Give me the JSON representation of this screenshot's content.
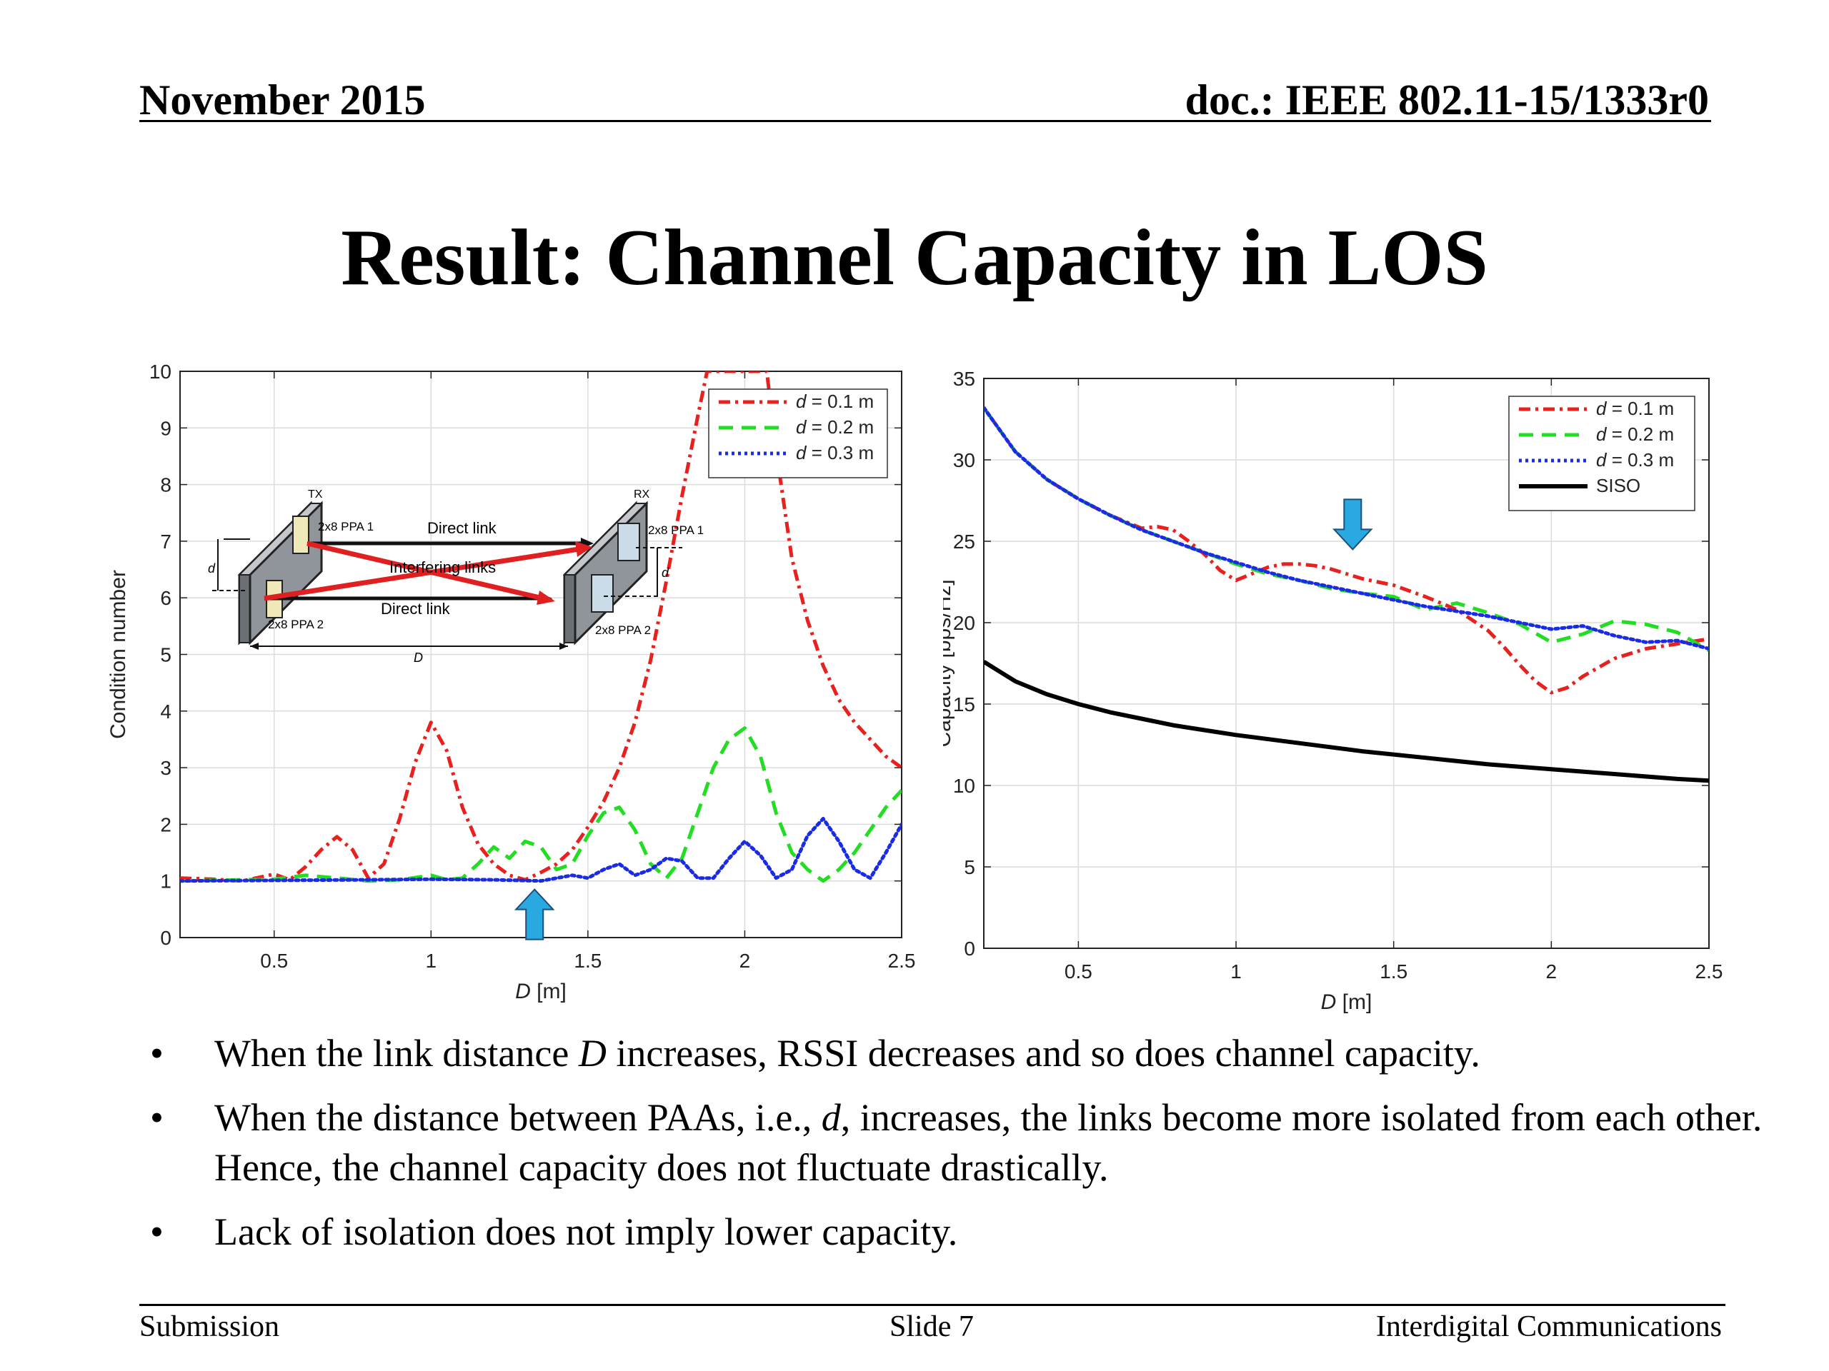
{
  "header": {
    "date": "November 2015",
    "doc_id": "doc.: IEEE 802.11-15/1333r0"
  },
  "title": "Result: Channel Capacity in LOS",
  "chart_data": [
    {
      "type": "line",
      "xlabel": "D [m]",
      "ylabel": "Condition number",
      "xlim": [
        0.2,
        2.5
      ],
      "ylim": [
        0,
        10
      ],
      "xticks": [
        0.5,
        1,
        1.5,
        2,
        2.5
      ],
      "yticks": [
        0,
        1,
        2,
        3,
        4,
        5,
        6,
        7,
        8,
        9,
        10
      ],
      "grid": true,
      "legend_position": "top-right",
      "series": [
        {
          "name": "d = 0.1 m",
          "color": "#e8201e",
          "style": "dash-dot",
          "x": [
            0.2,
            0.3,
            0.4,
            0.5,
            0.55,
            0.6,
            0.65,
            0.7,
            0.75,
            0.8,
            0.85,
            0.9,
            0.95,
            1.0,
            1.05,
            1.1,
            1.15,
            1.2,
            1.25,
            1.3,
            1.35,
            1.4,
            1.45,
            1.5,
            1.55,
            1.6,
            1.65,
            1.7,
            1.75,
            1.8,
            1.85,
            1.88,
            1.91,
            1.94,
            2.07,
            2.1,
            2.15,
            2.2,
            2.25,
            2.3,
            2.35,
            2.4,
            2.45,
            2.5
          ],
          "y": [
            1.05,
            1.03,
            1.0,
            1.12,
            1.02,
            1.25,
            1.55,
            1.78,
            1.55,
            1.05,
            1.3,
            2.1,
            3.1,
            3.8,
            3.3,
            2.3,
            1.65,
            1.3,
            1.1,
            1.02,
            1.15,
            1.3,
            1.55,
            1.95,
            2.4,
            3.0,
            3.8,
            4.9,
            6.3,
            7.8,
            9.2,
            10.0,
            10.0,
            10.0,
            10.0,
            8.6,
            6.7,
            5.6,
            4.8,
            4.2,
            3.8,
            3.5,
            3.2,
            3.0
          ]
        },
        {
          "name": "d = 0.2 m",
          "color": "#22dd22",
          "style": "dashed",
          "x": [
            0.2,
            0.5,
            0.6,
            0.7,
            0.8,
            0.9,
            1.0,
            1.05,
            1.1,
            1.15,
            1.2,
            1.25,
            1.3,
            1.35,
            1.4,
            1.45,
            1.5,
            1.55,
            1.6,
            1.65,
            1.7,
            1.75,
            1.8,
            1.85,
            1.9,
            1.95,
            2.0,
            2.05,
            2.1,
            2.15,
            2.2,
            2.25,
            2.3,
            2.35,
            2.4,
            2.45,
            2.5
          ],
          "y": [
            1.0,
            1.03,
            1.1,
            1.05,
            1.0,
            1.02,
            1.1,
            1.02,
            1.05,
            1.3,
            1.6,
            1.4,
            1.7,
            1.6,
            1.2,
            1.3,
            1.8,
            2.2,
            2.3,
            1.9,
            1.3,
            1.05,
            1.4,
            2.2,
            3.0,
            3.5,
            3.7,
            3.2,
            2.2,
            1.5,
            1.2,
            1.0,
            1.2,
            1.5,
            1.9,
            2.3,
            2.6
          ]
        },
        {
          "name": "d = 0.3 m",
          "color": "#1a2be6",
          "style": "dotted",
          "x": [
            0.2,
            0.5,
            0.8,
            1.0,
            1.2,
            1.35,
            1.45,
            1.5,
            1.55,
            1.6,
            1.65,
            1.7,
            1.75,
            1.8,
            1.85,
            1.9,
            1.95,
            2.0,
            2.05,
            2.1,
            2.15,
            2.2,
            2.25,
            2.3,
            2.35,
            2.4,
            2.45,
            2.5
          ],
          "y": [
            1.0,
            1.01,
            1.02,
            1.03,
            1.02,
            1.0,
            1.1,
            1.05,
            1.2,
            1.3,
            1.1,
            1.2,
            1.4,
            1.35,
            1.05,
            1.05,
            1.4,
            1.7,
            1.45,
            1.05,
            1.2,
            1.8,
            2.1,
            1.7,
            1.2,
            1.05,
            1.5,
            2.0
          ]
        }
      ]
    },
    {
      "type": "line",
      "xlabel": "D [m]",
      "ylabel": "Capacity [bps/Hz]",
      "xlim": [
        0.2,
        2.5
      ],
      "ylim": [
        0,
        35
      ],
      "xticks": [
        0.5,
        1,
        1.5,
        2,
        2.5
      ],
      "yticks": [
        0,
        5,
        10,
        15,
        20,
        25,
        30,
        35
      ],
      "grid": true,
      "legend_position": "top-right",
      "series": [
        {
          "name": "d = 0.1 m",
          "color": "#e8201e",
          "style": "dash-dot",
          "x": [
            0.2,
            0.3,
            0.4,
            0.5,
            0.6,
            0.7,
            0.75,
            0.8,
            0.85,
            0.9,
            0.95,
            1.0,
            1.05,
            1.1,
            1.15,
            1.2,
            1.25,
            1.3,
            1.35,
            1.4,
            1.45,
            1.5,
            1.6,
            1.7,
            1.8,
            1.85,
            1.9,
            1.95,
            2.0,
            2.05,
            2.1,
            2.2,
            2.3,
            2.4,
            2.5
          ],
          "y": [
            33.2,
            30.5,
            28.8,
            27.6,
            26.6,
            25.8,
            25.9,
            25.7,
            25.0,
            24.2,
            23.2,
            22.6,
            23.0,
            23.4,
            23.6,
            23.6,
            23.5,
            23.3,
            23.0,
            22.7,
            22.5,
            22.3,
            21.6,
            20.8,
            19.5,
            18.5,
            17.4,
            16.4,
            15.7,
            16.0,
            16.7,
            17.8,
            18.4,
            18.7,
            19.0
          ]
        },
        {
          "name": "d = 0.2 m",
          "color": "#22dd22",
          "style": "dashed",
          "x": [
            0.2,
            0.3,
            0.4,
            0.5,
            0.6,
            0.7,
            0.8,
            0.9,
            1.0,
            1.1,
            1.2,
            1.3,
            1.4,
            1.5,
            1.6,
            1.7,
            1.8,
            1.9,
            2.0,
            2.1,
            2.2,
            2.3,
            2.4,
            2.5
          ],
          "y": [
            33.2,
            30.5,
            28.8,
            27.6,
            26.6,
            25.7,
            25.0,
            24.3,
            23.6,
            23.0,
            22.6,
            22.1,
            21.8,
            21.6,
            20.8,
            21.2,
            20.6,
            19.9,
            18.8,
            19.3,
            20.1,
            19.9,
            19.4,
            18.3
          ]
        },
        {
          "name": "d = 0.3 m",
          "color": "#1a2be6",
          "style": "dotted",
          "x": [
            0.2,
            0.3,
            0.4,
            0.5,
            0.6,
            0.7,
            0.8,
            0.9,
            1.0,
            1.1,
            1.2,
            1.3,
            1.4,
            1.5,
            1.6,
            1.7,
            1.8,
            1.9,
            2.0,
            2.1,
            2.2,
            2.3,
            2.4,
            2.5
          ],
          "y": [
            33.2,
            30.5,
            28.8,
            27.6,
            26.6,
            25.7,
            25.0,
            24.3,
            23.7,
            23.1,
            22.6,
            22.2,
            21.8,
            21.4,
            21.0,
            20.7,
            20.4,
            20.0,
            19.6,
            19.8,
            19.2,
            18.8,
            18.9,
            18.4
          ]
        },
        {
          "name": "SISO",
          "color": "#000000",
          "style": "solid",
          "x": [
            0.2,
            0.3,
            0.4,
            0.5,
            0.6,
            0.7,
            0.8,
            0.9,
            1.0,
            1.2,
            1.4,
            1.6,
            1.8,
            2.0,
            2.2,
            2.4,
            2.5
          ],
          "y": [
            17.6,
            16.4,
            15.6,
            15.0,
            14.5,
            14.1,
            13.7,
            13.4,
            13.1,
            12.6,
            12.1,
            11.7,
            11.3,
            11.0,
            10.7,
            10.4,
            10.3
          ]
        }
      ]
    }
  ],
  "inset": {
    "tx_label": "TX",
    "rx_label": "RX",
    "tx_ppa1": "2x8 PPA 1",
    "tx_ppa2": "2x8 PPA 2",
    "rx_ppa1": "2x8 PPA 1",
    "rx_ppa2": "2x8 PPA 2",
    "direct_link_top": "Direct link",
    "direct_link_bottom": "Direct link",
    "interfering_links": "Interfering links",
    "d_label": "d",
    "D_label": "D"
  },
  "bullets": [
    {
      "marker": "•",
      "parts": [
        "When the link distance ",
        "D",
        " increases, RSSI decreases and so does channel capacity."
      ]
    },
    {
      "marker": "•",
      "parts": [
        "When the distance between PAAs, i.e., ",
        "d",
        ", increases, the links become more isolated from each other. Hence, the channel capacity does not fluctuate drastically."
      ]
    },
    {
      "marker": "•",
      "parts": [
        "Lack of isolation does not imply lower capacity."
      ]
    }
  ],
  "footer": {
    "left": "Submission",
    "center": "Slide 7",
    "right": "Interdigital Communications"
  },
  "colors": {
    "arrow": "#29a9e0",
    "arrow_outline": "#1f4e79"
  }
}
